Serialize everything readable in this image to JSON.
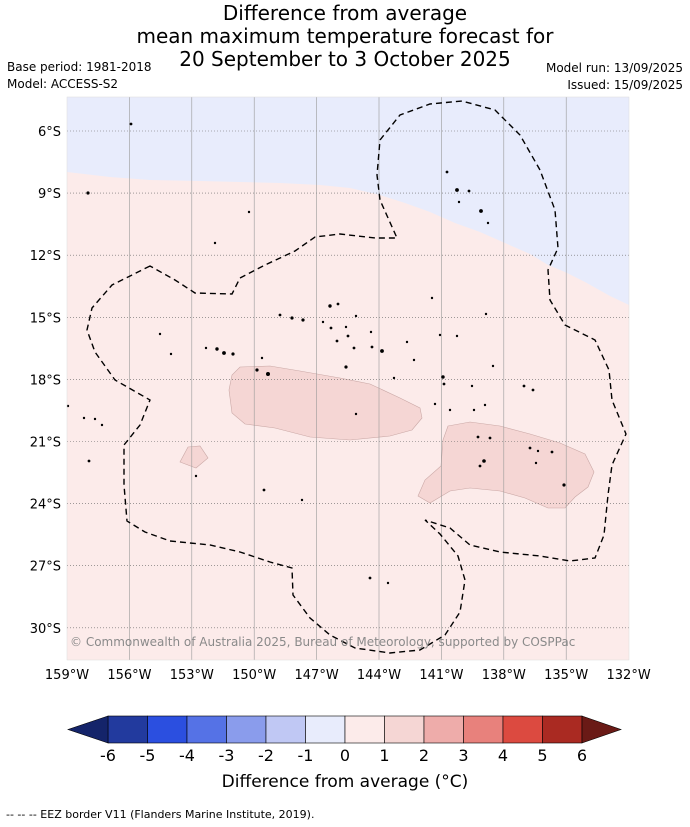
{
  "title": {
    "line1": "Difference from average",
    "line2": "mean maximum temperature forecast for",
    "line3": "20 September to 3 October 2025"
  },
  "meta_left": {
    "base_period": "Base period: 1981-2018",
    "model": "Model: ACCESS-S2"
  },
  "meta_right": {
    "model_run": "Model run: 13/09/2025",
    "issued": "Issued: 15/09/2025"
  },
  "map": {
    "lat_labels": [
      "6°S",
      "9°S",
      "12°S",
      "15°S",
      "18°S",
      "21°S",
      "24°S",
      "27°S",
      "30°S"
    ],
    "lon_labels": [
      "159°W",
      "156°W",
      "153°W",
      "150°W",
      "147°W",
      "144°W",
      "141°W",
      "138°W",
      "135°W",
      "132°W"
    ],
    "copyright": "© Commonwealth of Australia 2025, Bureau of Meteorology, supported by COSPPac",
    "colors": {
      "below_avg_light": "#e8ecfc",
      "above_avg_light": "#fcebea",
      "above_avg_mid": "#f5d6d4"
    }
  },
  "colorbar": {
    "tick_labels": [
      "-6",
      "-5",
      "-4",
      "-3",
      "-2",
      "-1",
      "0",
      "1",
      "2",
      "3",
      "4",
      "5",
      "6"
    ],
    "colors": [
      "#223a9e",
      "#2b4fe0",
      "#5572e6",
      "#8a9cec",
      "#c0c8f4",
      "#e8ecfc",
      "#fcebea",
      "#f5d6d4",
      "#eeacaa",
      "#e8817c",
      "#dc4a40",
      "#aa2a22"
    ],
    "low_extend_color": "#14246a",
    "high_extend_color": "#6a1a16",
    "label": "Difference from average (°C)"
  },
  "footnote": "-- -- -- EEZ border V11 (Flanders Marine Institute, 2019)."
}
